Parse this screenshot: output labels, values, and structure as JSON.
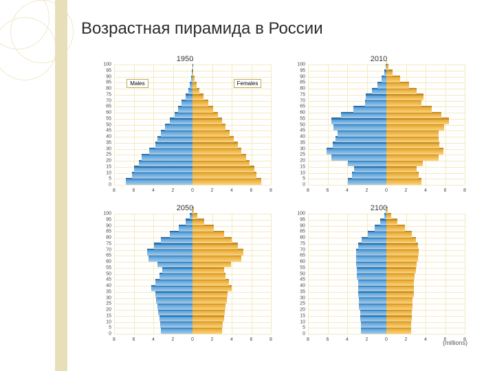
{
  "title": "Возрастная пирамида в России",
  "unit_label": "(millions)",
  "colors": {
    "male_top": "#4e9edc",
    "male_bottom": "#a8cbe8",
    "female_top": "#e8a72e",
    "female_bottom": "#fcd37f",
    "shadow_female": "#c18e2a",
    "shadow_male": "#2f6fa5",
    "grid": "#f3e9c0",
    "axis": "#c8bb86",
    "text": "#333333",
    "legend_border": "#bca85a",
    "background": "#ffffff"
  },
  "fonts": {
    "title_pt": 24,
    "panel_title_pt": 11,
    "tick_pt": 7,
    "legend_pt": 8
  },
  "age_bands": [
    "0",
    "5",
    "10",
    "15",
    "20",
    "25",
    "30",
    "35",
    "40",
    "45",
    "50",
    "55",
    "60",
    "65",
    "70",
    "75",
    "80",
    "85",
    "90",
    "95",
    "100"
  ],
  "xlim": 8,
  "xticks": [
    8,
    6,
    4,
    2,
    0,
    2,
    4,
    6,
    8
  ],
  "legend": {
    "male": "Males",
    "female": "Females",
    "show_in_panel": 0
  },
  "panels": [
    {
      "year": "1950",
      "male": [
        6.8,
        6.2,
        6.0,
        5.5,
        5.2,
        4.4,
        3.8,
        3.6,
        3.2,
        2.8,
        2.3,
        1.8,
        1.5,
        1.1,
        0.7,
        0.4,
        0.25,
        0.12,
        0.05,
        0.02,
        0.01
      ],
      "female": [
        7.0,
        6.5,
        6.3,
        5.8,
        5.5,
        5.0,
        4.6,
        4.2,
        3.8,
        3.4,
        3.0,
        2.6,
        2.1,
        1.6,
        1.1,
        0.7,
        0.4,
        0.2,
        0.08,
        0.03,
        0.01
      ]
    },
    {
      "year": "2010",
      "male": [
        3.9,
        3.5,
        3.3,
        3.9,
        5.6,
        6.1,
        5.5,
        5.2,
        5.0,
        5.4,
        5.6,
        4.6,
        3.4,
        2.2,
        2.1,
        1.5,
        0.9,
        0.5,
        0.2,
        0.05,
        0.02
      ],
      "female": [
        3.6,
        3.3,
        3.1,
        3.7,
        5.3,
        5.8,
        5.4,
        5.3,
        5.3,
        5.9,
        6.4,
        5.6,
        4.6,
        3.6,
        3.8,
        3.1,
        2.3,
        1.4,
        0.6,
        0.2,
        0.05
      ]
    },
    {
      "year": "2050",
      "male": [
        3.2,
        3.3,
        3.4,
        3.5,
        3.6,
        3.7,
        3.8,
        4.2,
        3.8,
        3.4,
        3.1,
        3.6,
        4.5,
        4.6,
        3.9,
        3.2,
        2.3,
        1.4,
        0.7,
        0.25,
        0.05
      ],
      "female": [
        3.0,
        3.1,
        3.2,
        3.3,
        3.4,
        3.5,
        3.6,
        4.0,
        3.7,
        3.4,
        3.2,
        3.9,
        5.0,
        5.2,
        4.6,
        4.0,
        3.2,
        2.2,
        1.2,
        0.5,
        0.15
      ]
    },
    {
      "year": "2100",
      "male": [
        2.6,
        2.6,
        2.7,
        2.7,
        2.8,
        2.8,
        2.9,
        2.9,
        2.9,
        3.0,
        3.0,
        3.1,
        3.1,
        3.1,
        2.9,
        2.5,
        1.9,
        1.2,
        0.6,
        0.2,
        0.05
      ],
      "female": [
        2.5,
        2.5,
        2.6,
        2.6,
        2.7,
        2.7,
        2.8,
        2.8,
        2.8,
        2.9,
        3.0,
        3.1,
        3.2,
        3.3,
        3.2,
        3.0,
        2.6,
        1.9,
        1.1,
        0.5,
        0.15
      ]
    }
  ]
}
